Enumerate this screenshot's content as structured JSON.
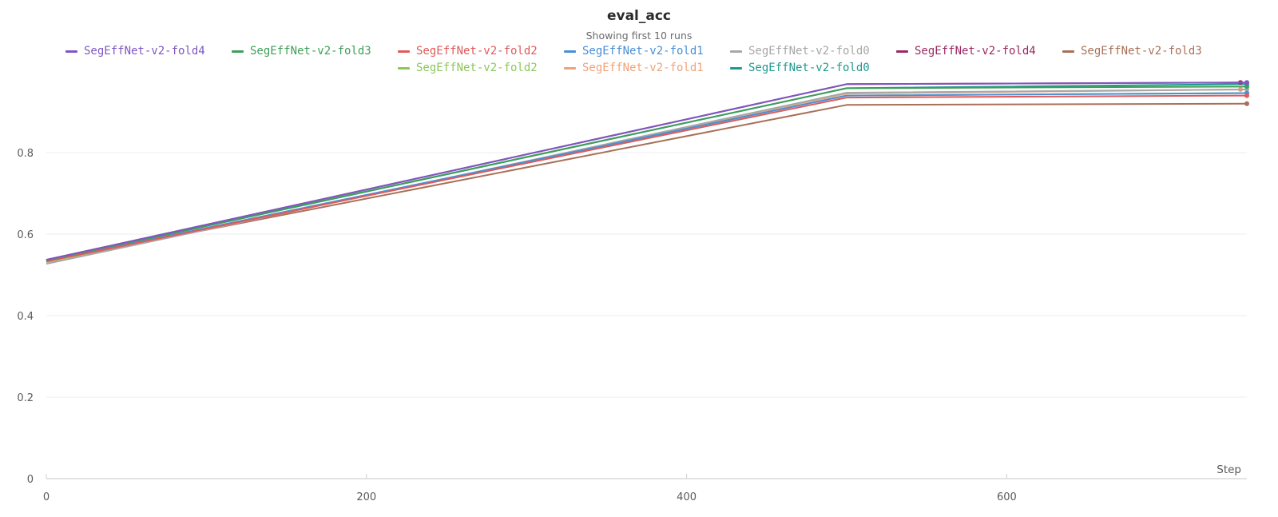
{
  "chart_data": {
    "type": "line",
    "title": "eval_acc",
    "subtitle": "Showing first 10 runs",
    "xlabel": "Step",
    "ylabel": "",
    "xlim": [
      0,
      750
    ],
    "ylim": [
      0,
      1
    ],
    "x_ticks": [
      0,
      200,
      400,
      600
    ],
    "x_tick_labels": [
      "0",
      "200",
      "400",
      "600"
    ],
    "y_ticks": [
      0,
      0.2,
      0.4,
      0.6,
      0.8
    ],
    "y_tick_labels": [
      "0",
      "0.2",
      "0.4",
      "0.6",
      "0.8"
    ],
    "grid": true,
    "legend_position": "top",
    "legend_rows": [
      [
        0,
        1,
        2,
        3,
        4,
        5,
        6
      ],
      [
        7,
        8,
        9
      ]
    ],
    "series": [
      {
        "name": "SegEffNet-v2-fold4",
        "color": "#7e57c2",
        "x": [
          0,
          500,
          750
        ],
        "y": [
          0.537,
          0.968,
          0.972
        ]
      },
      {
        "name": "SegEffNet-v2-fold3",
        "color": "#3f9e58",
        "x": [
          0,
          500,
          750
        ],
        "y": [
          0.536,
          0.958,
          0.962
        ]
      },
      {
        "name": "SegEffNet-v2-fold2",
        "color": "#e05a5a",
        "x": [
          0,
          500,
          750
        ],
        "y": [
          0.533,
          0.935,
          0.94
        ]
      },
      {
        "name": "SegEffNet-v2-fold1",
        "color": "#4a8fd6",
        "x": [
          0,
          500,
          750
        ],
        "y": [
          0.534,
          0.94,
          0.946
        ]
      },
      {
        "name": "SegEffNet-v2-fold0",
        "color": "#a7a7a7",
        "x": [
          0,
          500,
          750
        ],
        "y": [
          0.527,
          0.947,
          0.955
        ]
      },
      {
        "name": "SegEffNet-v2-fold4",
        "color": "#9b2a63",
        "x": [
          0,
          500,
          746
        ],
        "y": [
          0.537,
          0.968,
          0.972
        ]
      },
      {
        "name": "SegEffNet-v2-fold3",
        "color": "#a87058",
        "x": [
          0,
          500,
          750
        ],
        "y": [
          0.534,
          0.917,
          0.92
        ]
      },
      {
        "name": "SegEffNet-v2-fold2",
        "color": "#8cc85a",
        "x": [
          0,
          500,
          750
        ],
        "y": [
          0.532,
          0.94,
          0.946
        ]
      },
      {
        "name": "SegEffNet-v2-fold1",
        "color": "#f0a27a",
        "x": [
          0,
          500,
          746
        ],
        "y": [
          0.528,
          0.945,
          0.955
        ]
      },
      {
        "name": "SegEffNet-v2-fold0",
        "color": "#1f9a8f",
        "x": [
          0,
          500,
          750
        ],
        "y": [
          0.535,
          0.958,
          0.968
        ]
      }
    ]
  }
}
